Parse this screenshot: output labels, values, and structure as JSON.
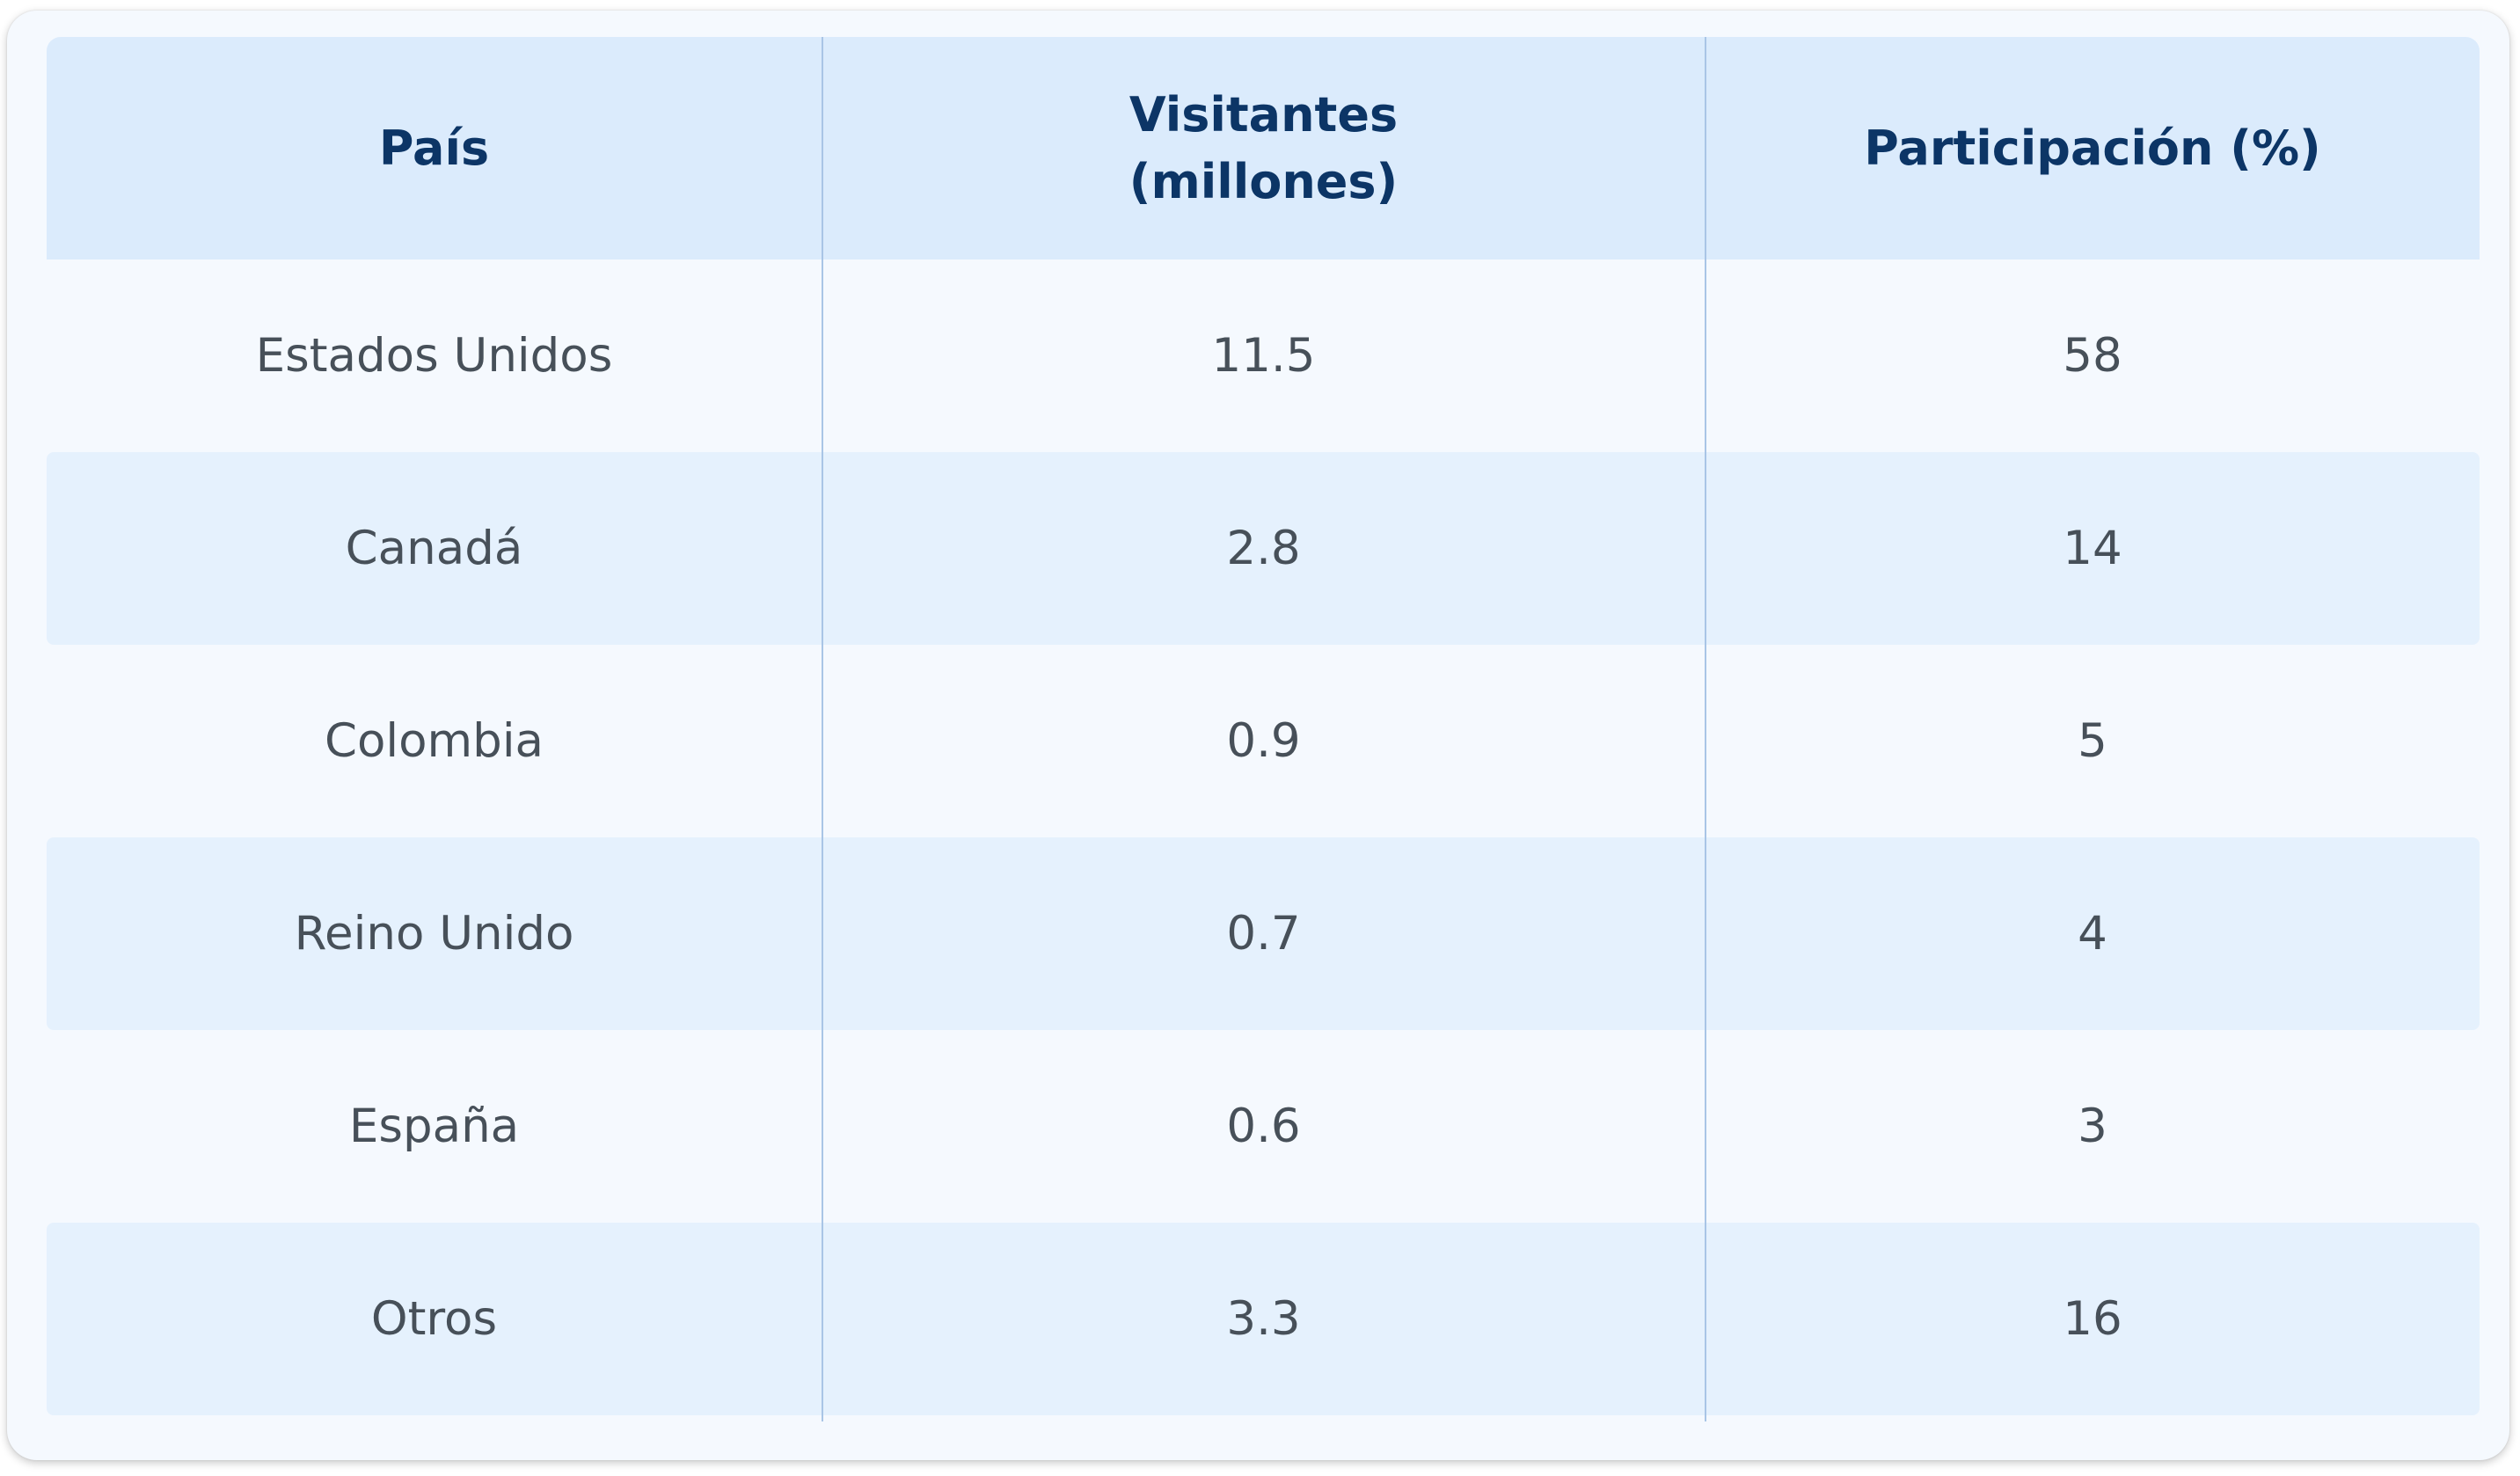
{
  "chart_data": {
    "type": "table",
    "columns": [
      "País",
      "Visitantes\n(millones)",
      "Participación (%)"
    ],
    "rows": [
      [
        "Estados Unidos",
        "11.5",
        "58"
      ],
      [
        "Canadá",
        "2.8",
        "14"
      ],
      [
        "Colombia",
        "0.9",
        "5"
      ],
      [
        "Reino Unido",
        "0.7",
        "4"
      ],
      [
        "España",
        "0.6",
        "3"
      ],
      [
        "Otros",
        "3.3",
        "16"
      ]
    ]
  },
  "colors": {
    "header_bg": "#dbebfc",
    "header_text": "#0c3566",
    "row_alt_bg": "#e5f1fd",
    "row_bg": "#f5f9fe",
    "body_text": "#475059",
    "divider": "#a9c5e6"
  }
}
